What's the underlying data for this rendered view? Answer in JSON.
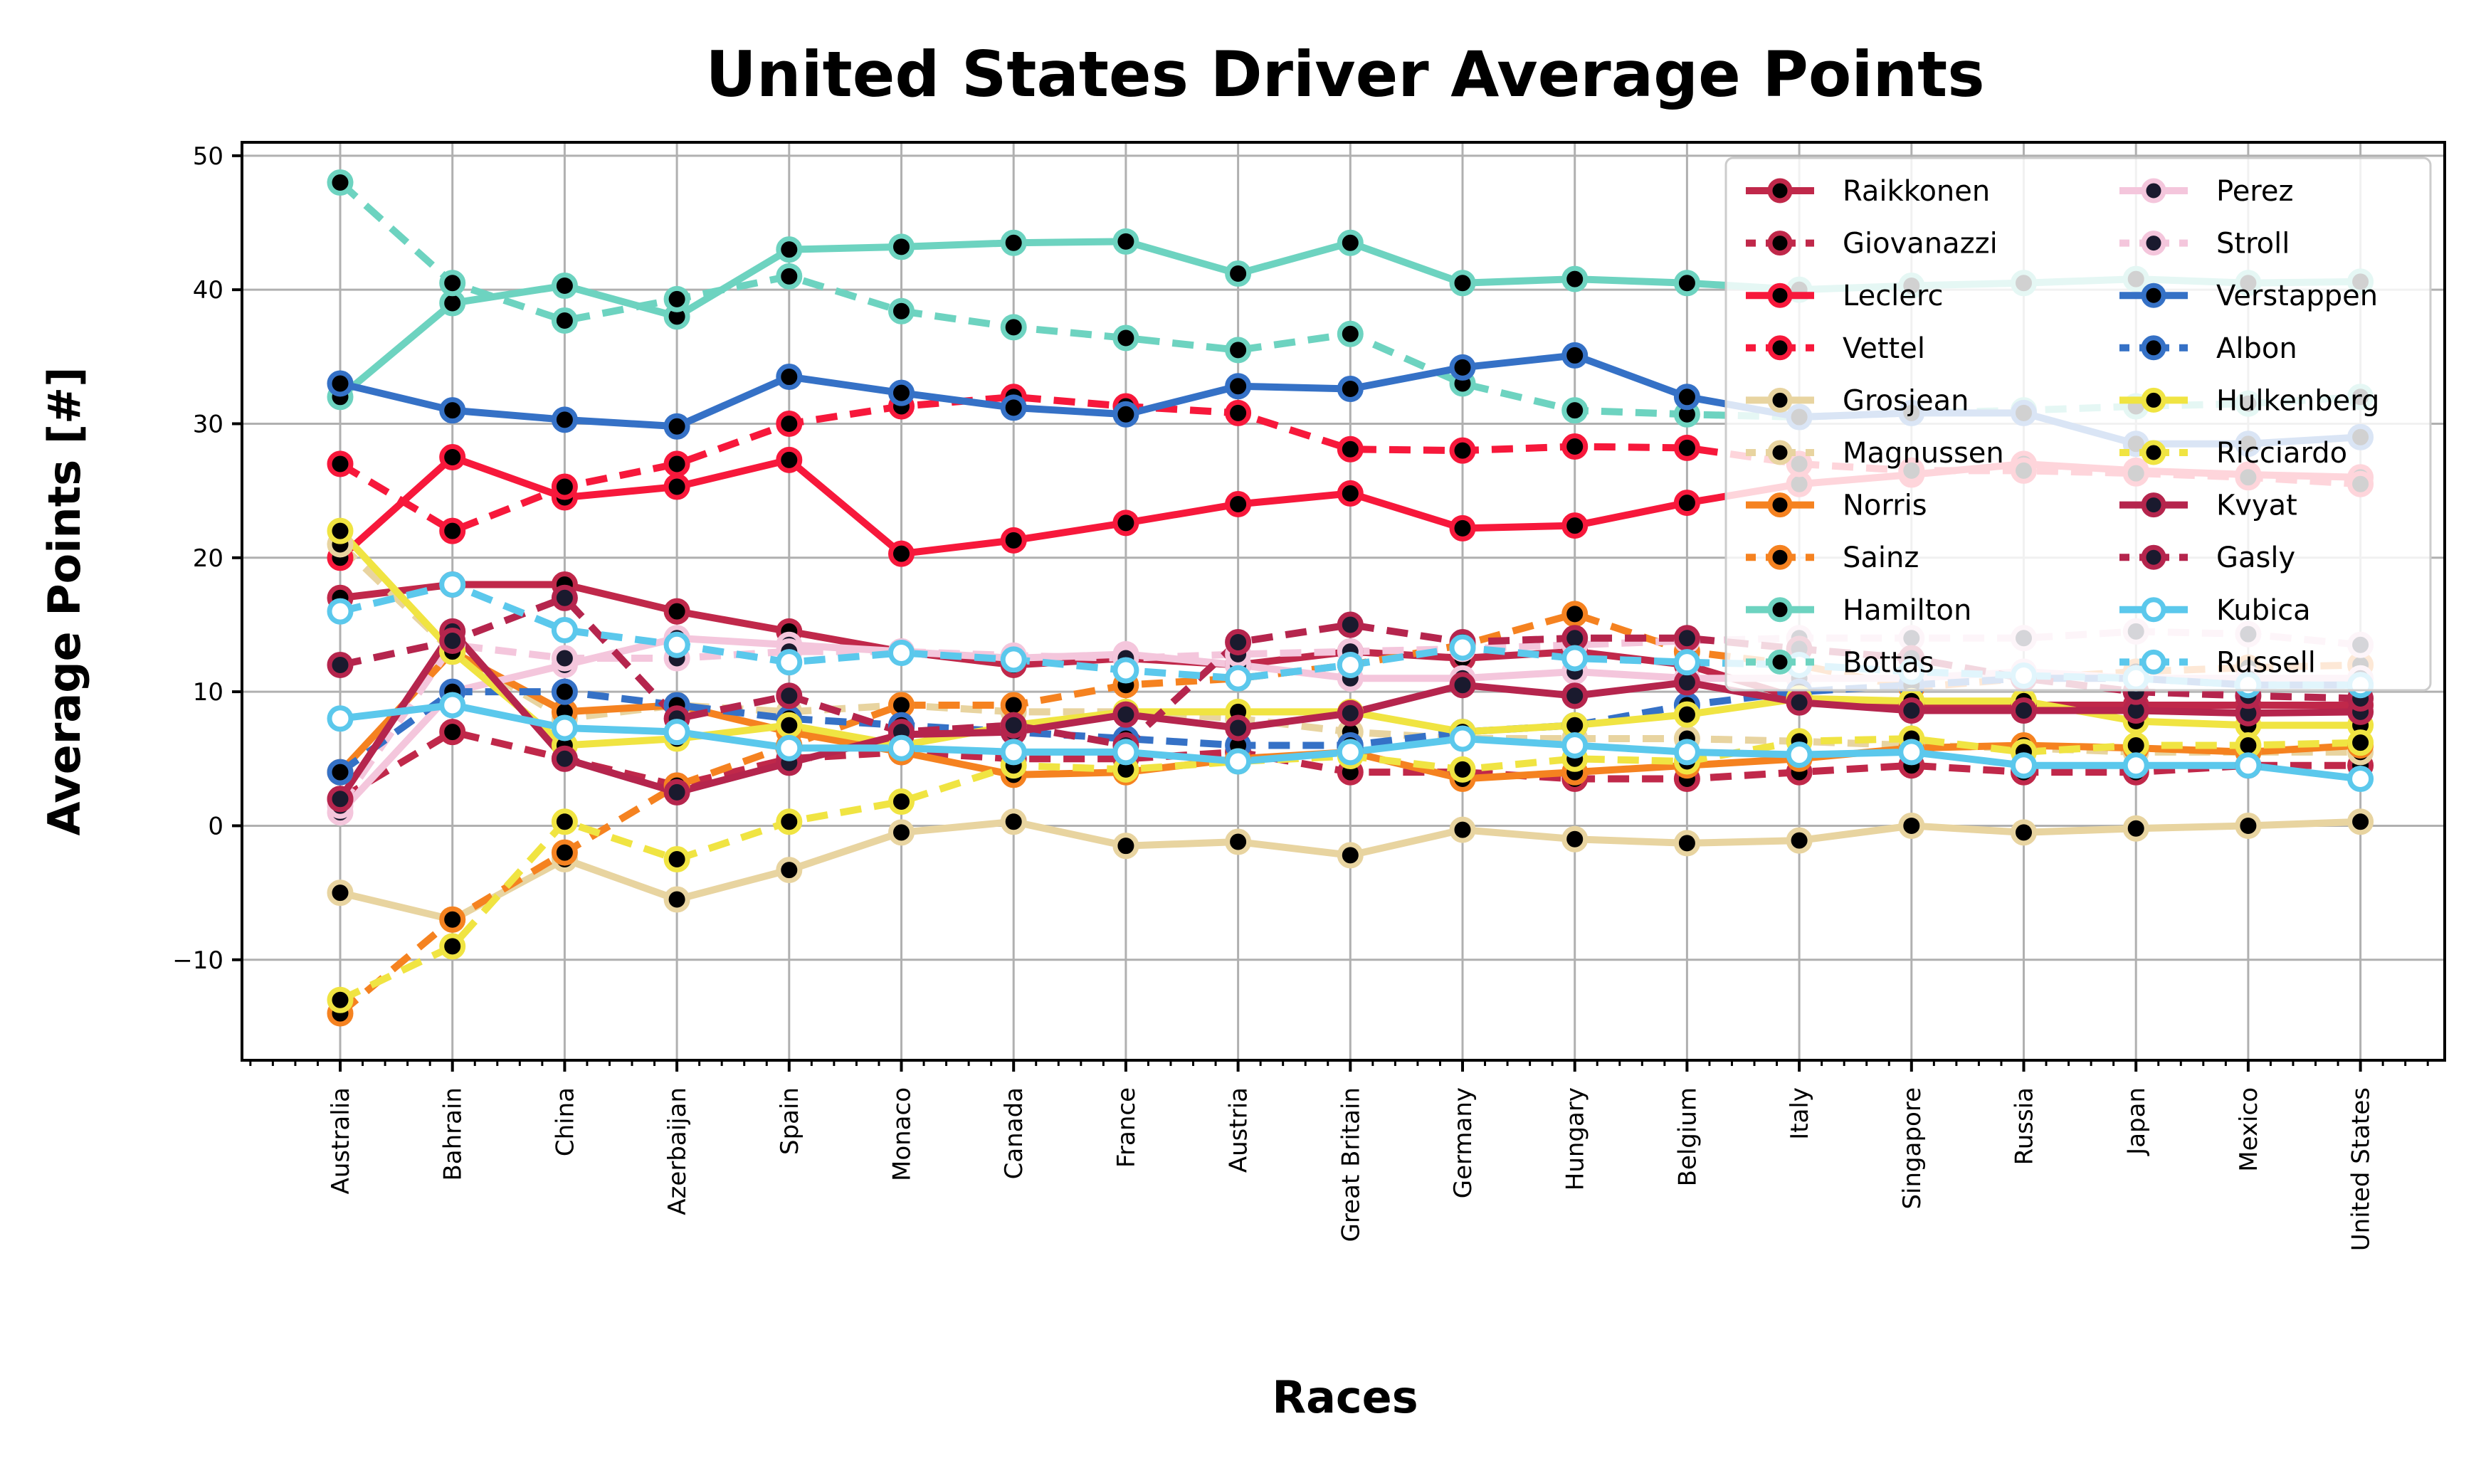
{
  "chart_data": {
    "type": "line",
    "title": "United States Driver Average Points",
    "xlabel": "Races",
    "ylabel": "Average Points [#]",
    "ylim": [
      -17.5,
      51
    ],
    "yticks": [
      -10,
      0,
      10,
      20,
      30,
      40,
      50
    ],
    "ytick_labels": [
      "−10",
      "0",
      "10",
      "20",
      "30",
      "40",
      "50"
    ],
    "grid": true,
    "legend": "top-right",
    "categories": [
      "Australia",
      "Bahrain",
      "China",
      "Azerbaijan",
      "Spain",
      "Monaco",
      "Canada",
      "France",
      "Austria",
      "Great Britain",
      "Germany",
      "Hungary",
      "Belgium",
      "Italy",
      "Singapore",
      "Russia",
      "Japan",
      "Mexico",
      "United States"
    ],
    "series": [
      {
        "name": "Raikkonen",
        "color": "#c0284a",
        "style": "solid",
        "values": [
          17,
          18,
          18,
          16,
          14.5,
          13,
          12,
          12.5,
          12,
          13,
          12.5,
          13,
          12,
          9.5,
          9,
          9,
          9,
          9,
          9
        ]
      },
      {
        "name": "Giovanazzi",
        "color": "#c0284a",
        "style": "dotted",
        "values": [
          2,
          7,
          5,
          3,
          5,
          5.5,
          5,
          5,
          5.5,
          4,
          4,
          3.5,
          3.5,
          4,
          4.5,
          4,
          4,
          4.5,
          4.5
        ]
      },
      {
        "name": "Leclerc",
        "color": "#f7183b",
        "style": "solid",
        "values": [
          20,
          27.5,
          24.5,
          25.3,
          27.3,
          20.3,
          21.3,
          22.6,
          24,
          24.8,
          22.2,
          22.4,
          24.1,
          25.5,
          26.2,
          27,
          26.5,
          26.2,
          26
        ]
      },
      {
        "name": "Vettel",
        "color": "#f7183b",
        "style": "dotted",
        "values": [
          27,
          22,
          25.3,
          27,
          30,
          31.3,
          32,
          31.3,
          30.8,
          28.1,
          28,
          28.3,
          28.2,
          27,
          26.5,
          26.5,
          26.3,
          26,
          25.5
        ]
      },
      {
        "name": "Grosjean",
        "color": "#e8d4a0",
        "style": "solid",
        "values": [
          -5,
          -7,
          -2.5,
          -5.5,
          -3.3,
          -0.5,
          0.3,
          -1.5,
          -1.2,
          -2.2,
          -0.3,
          -1,
          -1.3,
          -1.1,
          0,
          -0.5,
          -0.2,
          0,
          0.3
        ]
      },
      {
        "name": "Magnussen",
        "color": "#e8d4a0",
        "style": "dotted",
        "values": [
          21,
          13,
          8,
          9,
          8.5,
          9,
          8.5,
          8.5,
          8,
          7,
          6.5,
          6.5,
          6.5,
          6.3,
          6,
          5.8,
          5.5,
          5.5,
          5.5
        ]
      },
      {
        "name": "Norris",
        "color": "#f58220",
        "style": "solid",
        "values": [
          4,
          13,
          8.5,
          9,
          7,
          5.5,
          3.8,
          4,
          5,
          5.5,
          3.5,
          4,
          4.5,
          5,
          5.8,
          6,
          5.8,
          5.5,
          6
        ]
      },
      {
        "name": "Sainz",
        "color": "#f58220",
        "style": "dotted",
        "values": [
          -14,
          -7,
          -2,
          3,
          6,
          9,
          9,
          10.5,
          11,
          12,
          13.5,
          15.8,
          13,
          12,
          10.3,
          11,
          11.5,
          11.8,
          12
        ]
      },
      {
        "name": "Hamilton",
        "color": "#6dd3c0",
        "style": "solid",
        "values": [
          32,
          39,
          40.3,
          38,
          43,
          43.2,
          43.5,
          43.6,
          41.2,
          43.5,
          40.5,
          40.8,
          40.5,
          40,
          40.3,
          40.5,
          40.8,
          40.5,
          40.6
        ]
      },
      {
        "name": "Bottas",
        "color": "#6dd3c0",
        "style": "dotted",
        "values": [
          48,
          40.5,
          37.7,
          39.3,
          41,
          38.4,
          37.2,
          36.4,
          35.5,
          36.7,
          33,
          31,
          30.7,
          30.5,
          30.8,
          31,
          31.3,
          31.5,
          32
        ]
      },
      {
        "name": "Perez",
        "color": "#f4c6dc",
        "style": "solid",
        "values": [
          1,
          10,
          12,
          14,
          13.5,
          13,
          12.5,
          12.8,
          12,
          11,
          11,
          11.5,
          11,
          11,
          11,
          11.5,
          11,
          11,
          11
        ]
      },
      {
        "name": "Stroll",
        "color": "#f4c6dc",
        "style": "dotted",
        "values": [
          1.5,
          13.5,
          12.5,
          12.5,
          13,
          13,
          12.7,
          12.5,
          12.8,
          13,
          13.2,
          13.5,
          13.8,
          14,
          14,
          14,
          14.5,
          14.3,
          13.5
        ]
      },
      {
        "name": "Verstappen",
        "color": "#3571c6",
        "style": "solid",
        "values": [
          33,
          31,
          30.3,
          29.8,
          33.5,
          32.3,
          31.2,
          30.7,
          32.8,
          32.6,
          34.2,
          35.1,
          32,
          30.5,
          30.8,
          30.8,
          28.5,
          28.5,
          29
        ]
      },
      {
        "name": "Albon",
        "color": "#3571c6",
        "style": "dotted",
        "values": [
          4,
          10,
          10,
          9,
          8,
          7.5,
          7,
          6.5,
          6,
          6,
          7,
          7.5,
          9,
          10,
          10.5,
          11,
          11,
          10.5,
          10.5
        ]
      },
      {
        "name": "Hulkenberg",
        "color": "#f0e442",
        "style": "solid",
        "values": [
          22,
          13,
          6,
          6.5,
          7.5,
          6,
          7.5,
          8.5,
          8.5,
          8.5,
          7,
          7.5,
          8.3,
          9.5,
          9.3,
          9.3,
          7.8,
          7.5,
          7.5
        ]
      },
      {
        "name": "Ricciardo",
        "color": "#f0e442",
        "style": "dotted",
        "values": [
          -13,
          -9,
          0.3,
          -2.5,
          0.3,
          1.8,
          4.5,
          4.2,
          4.8,
          5.2,
          4.2,
          5,
          4.8,
          6.3,
          6.5,
          5.5,
          6,
          6,
          6.2
        ]
      },
      {
        "name": "Kvyat",
        "color": "#b5254d",
        "style": "solid",
        "values": [
          2,
          14.5,
          5,
          2.5,
          4.7,
          6.8,
          7,
          8.3,
          7.3,
          8.4,
          10.5,
          9.7,
          10.7,
          9.2,
          8.6,
          8.6,
          8.6,
          8.4,
          8.5
        ]
      },
      {
        "name": "Gasly",
        "color": "#b5254d",
        "style": "dotted",
        "values": [
          12,
          13.8,
          17,
          8,
          9.7,
          7,
          7.5,
          6,
          13.7,
          15,
          13.7,
          14,
          14,
          13.2,
          12.5,
          11,
          10,
          9.7,
          9.5
        ]
      },
      {
        "name": "Kubica",
        "color": "#5bc8ec",
        "style": "solid",
        "values": [
          8,
          9,
          7.3,
          7,
          5.8,
          5.8,
          5.5,
          5.5,
          4.8,
          5.5,
          6.5,
          6,
          5.5,
          5.3,
          5.5,
          4.5,
          4.5,
          4.5,
          3.5
        ]
      },
      {
        "name": "Russell",
        "color": "#5bc8ec",
        "style": "dotted",
        "values": [
          16,
          18,
          14.6,
          13.5,
          12.2,
          12.9,
          12.4,
          11.6,
          11,
          12,
          13.3,
          12.5,
          12.2,
          12,
          11.5,
          11.2,
          11,
          10.5,
          10.5
        ]
      }
    ]
  }
}
